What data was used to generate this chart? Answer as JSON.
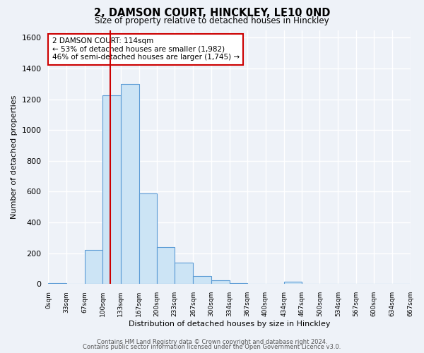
{
  "title": "2, DAMSON COURT, HINCKLEY, LE10 0ND",
  "subtitle": "Size of property relative to detached houses in Hinckley",
  "xlabel": "Distribution of detached houses by size in Hinckley",
  "ylabel": "Number of detached properties",
  "bin_edges": [
    0,
    33,
    67,
    100,
    133,
    167,
    200,
    233,
    267,
    300,
    334,
    367,
    400,
    434,
    467,
    500,
    534,
    567,
    600,
    634,
    667
  ],
  "bar_heights": [
    5,
    0,
    220,
    1225,
    1300,
    590,
    240,
    140,
    50,
    25,
    5,
    0,
    0,
    15,
    0,
    0,
    0,
    0,
    0,
    0
  ],
  "bar_color": "#cce4f5",
  "bar_edge_color": "#5b9bd5",
  "property_size": 114,
  "marker_line_color": "#cc0000",
  "annotation_text": "2 DAMSON COURT: 114sqm\n← 53% of detached houses are smaller (1,982)\n46% of semi-detached houses are larger (1,745) →",
  "annotation_box_edge": "#cc0000",
  "annotation_box_face": "#ffffff",
  "ylim": [
    0,
    1650
  ],
  "yticks": [
    0,
    200,
    400,
    600,
    800,
    1000,
    1200,
    1400,
    1600
  ],
  "tick_labels": [
    "0sqm",
    "33sqm",
    "67sqm",
    "100sqm",
    "133sqm",
    "167sqm",
    "200sqm",
    "233sqm",
    "267sqm",
    "300sqm",
    "334sqm",
    "367sqm",
    "400sqm",
    "434sqm",
    "467sqm",
    "500sqm",
    "534sqm",
    "567sqm",
    "600sqm",
    "634sqm",
    "667sqm"
  ],
  "footer_line1": "Contains HM Land Registry data © Crown copyright and database right 2024.",
  "footer_line2": "Contains public sector information licensed under the Open Government Licence v3.0.",
  "bg_color": "#eef2f8",
  "plot_bg_color": "#eef2f8",
  "grid_color": "#ffffff"
}
